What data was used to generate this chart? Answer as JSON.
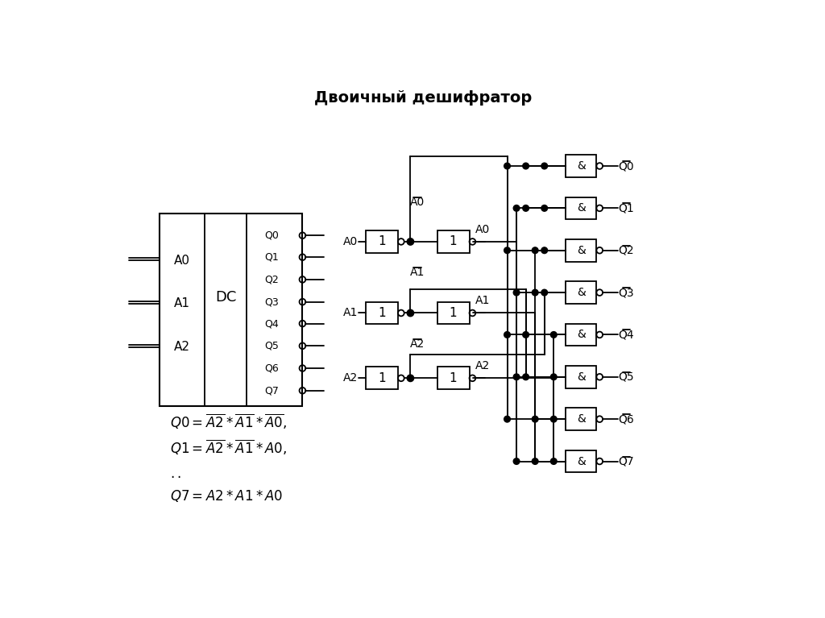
{
  "title": "Двоичный дешифратор",
  "title_fontsize": 14,
  "bg_color": "#ffffff",
  "fig_width": 10.24,
  "fig_height": 7.67,
  "q_labels": [
    "Q0",
    "Q1",
    "Q2",
    "Q3",
    "Q4",
    "Q5",
    "Q6",
    "Q7"
  ],
  "row_labels": [
    "A0",
    "A1",
    "A2"
  ],
  "formulas": [
    "Q0 = A2_bar * A1_bar * A0_bar,",
    "Q1 = A2_bar * A1_bar * A0,",
    "..",
    "Q7 = A2 * A1 * A0"
  ]
}
